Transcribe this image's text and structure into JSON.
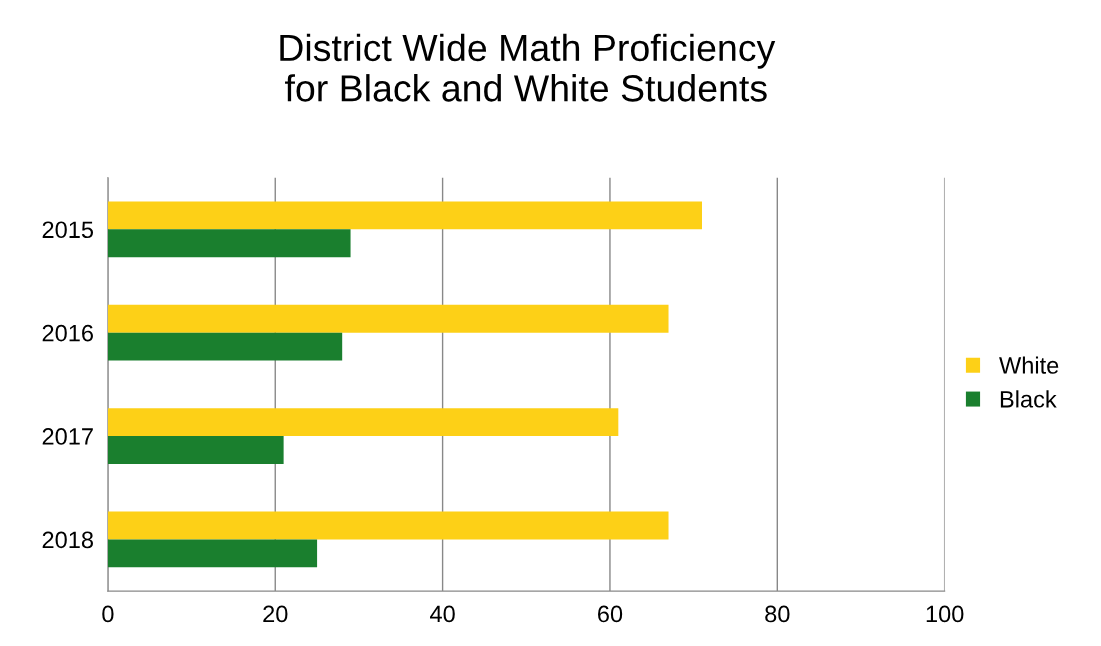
{
  "chart_data": {
    "type": "bar",
    "orientation": "horizontal",
    "title": "District Wide Math Proficiency\nfor Black and White Students",
    "categories": [
      "2015",
      "2016",
      "2017",
      "2018"
    ],
    "series": [
      {
        "name": "White",
        "color": "#fdd017",
        "values": [
          71,
          67,
          61,
          67
        ]
      },
      {
        "name": "Black",
        "color": "#1a7f2e",
        "values": [
          29,
          28,
          21,
          25
        ]
      }
    ],
    "xlim": [
      0,
      100
    ],
    "xticks": [
      0,
      20,
      40,
      60,
      80,
      100
    ],
    "grid": "x",
    "legend": "right"
  }
}
